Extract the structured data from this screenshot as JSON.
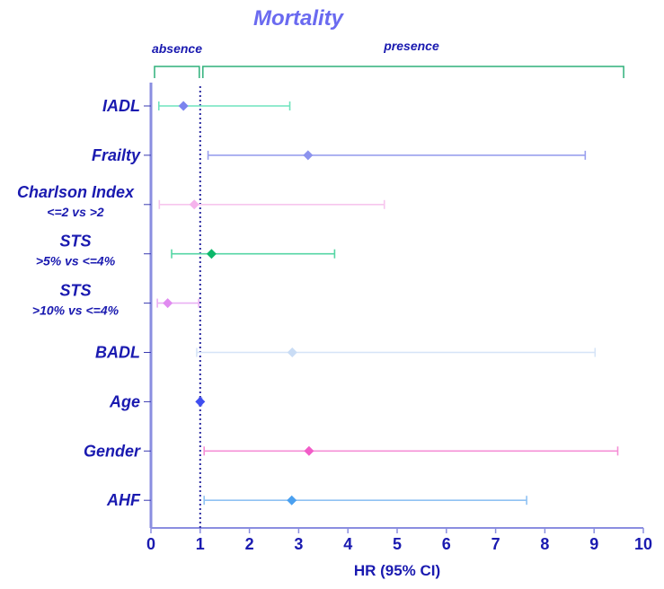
{
  "chart_data": {
    "type": "forest",
    "title": "Mortality",
    "xlabel": "HR (95% CI)",
    "xlim": [
      0,
      10
    ],
    "xticks": [
      "0",
      "1",
      "2",
      "3",
      "4",
      "5",
      "6",
      "7",
      "8",
      "9",
      "10"
    ],
    "reference_line": 1,
    "groups": [
      {
        "label": "absence",
        "from": 0,
        "to": 1
      },
      {
        "label": "presence",
        "from": 1,
        "to": 9.6
      }
    ],
    "rows": [
      {
        "label": "IADL",
        "sublabel": "",
        "hr": 0.66,
        "lo": 0.16,
        "hi": 2.82,
        "color": "#7b84ee",
        "ci_color": "#6fe3bd",
        "label_color": "#1a1ab0"
      },
      {
        "label": "Frailty",
        "sublabel": "",
        "hr": 3.19,
        "lo": 1.16,
        "hi": 8.82,
        "color": "#8c93ee",
        "ci_color": "#9aa0ee",
        "label_color": "#6a6aee"
      },
      {
        "label": "Charlson Index",
        "sublabel": "<=2 vs >2",
        "hr": 0.88,
        "lo": 0.17,
        "hi": 4.74,
        "color": "#f5b3ec",
        "ci_color": "#f7c6ee",
        "label_color": "#1a1ab0"
      },
      {
        "label": "STS",
        "sublabel": ">5% vs <=4%",
        "hr": 1.23,
        "lo": 0.42,
        "hi": 3.73,
        "color": "#0cb86a",
        "ci_color": "#55d6a4",
        "label_color": "#1a1ab0"
      },
      {
        "label": "STS",
        "sublabel": ">10% vs <=4%",
        "hr": 0.34,
        "lo": 0.13,
        "hi": 0.97,
        "color": "#e08af0",
        "ci_color": "#eab0f3",
        "label_color": "#1a1ab0"
      },
      {
        "label": "BADL",
        "sublabel": "",
        "hr": 2.87,
        "lo": 0.93,
        "hi": 9.02,
        "color": "#c9dcf5",
        "ci_color": "#d6e4f7",
        "label_color": "#1a1ab0"
      },
      {
        "label": "Age",
        "sublabel": "",
        "hr": 1.0,
        "lo": 0.98,
        "hi": 1.03,
        "color": "#3f4ef0",
        "ci_color": "#8f97f3",
        "label_color": "#1a1ab0"
      },
      {
        "label": "Gender",
        "sublabel": "",
        "hr": 3.21,
        "lo": 1.08,
        "hi": 9.48,
        "color": "#f25cc8",
        "ci_color": "#f58fd6",
        "label_color": "#1a1ab0"
      },
      {
        "label": "AHF",
        "sublabel": "",
        "hr": 2.86,
        "lo": 1.08,
        "hi": 7.63,
        "color": "#4aa0f0",
        "ci_color": "#8fc2f3",
        "label_color": "#1a1ab0"
      }
    ],
    "colors": {
      "axis": "#8a8ee0",
      "reference_line": "#2a2aa0",
      "bracket": "#2fb07a",
      "title": "#6a6af0"
    }
  }
}
